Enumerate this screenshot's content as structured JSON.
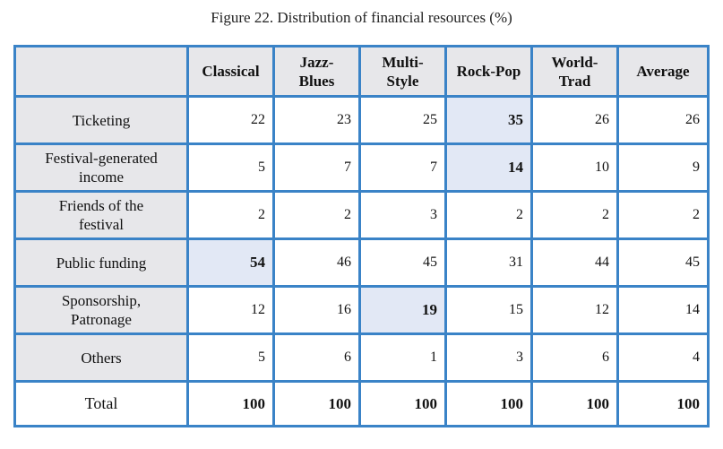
{
  "title": "Figure 22. Distribution of financial resources (%)",
  "chart_data": {
    "type": "table",
    "title": "Figure 22. Distribution of financial resources (%)",
    "columns": [
      "Classical",
      "Jazz-Blues",
      "Multi-Style",
      "Rock-Pop",
      "World-Trad",
      "Average"
    ],
    "columns_display": [
      [
        "Classical"
      ],
      [
        "Jazz-",
        "Blues"
      ],
      [
        "Multi-",
        "Style"
      ],
      [
        "Rock-Pop"
      ],
      [
        "World-",
        "Trad"
      ],
      [
        "Average"
      ]
    ],
    "rows": [
      {
        "label": "Ticketing",
        "label_lines": [
          "Ticketing"
        ],
        "values": [
          22,
          23,
          25,
          35,
          26,
          26
        ],
        "highlight": [
          3
        ]
      },
      {
        "label": "Festival-generated income",
        "label_lines": [
          "Festival-generated",
          "income"
        ],
        "values": [
          5,
          7,
          7,
          14,
          10,
          9
        ],
        "highlight": [
          3
        ]
      },
      {
        "label": "Friends of the festival",
        "label_lines": [
          "Friends of the",
          "festival"
        ],
        "values": [
          2,
          2,
          3,
          2,
          2,
          2
        ],
        "highlight": []
      },
      {
        "label": "Public funding",
        "label_lines": [
          "Public funding"
        ],
        "values": [
          54,
          46,
          45,
          31,
          44,
          45
        ],
        "highlight": [
          0
        ]
      },
      {
        "label": "Sponsorship, Patronage",
        "label_lines": [
          "Sponsorship,",
          "Patronage"
        ],
        "values": [
          12,
          16,
          19,
          15,
          12,
          14
        ],
        "highlight": [
          2
        ]
      },
      {
        "label": "Others",
        "label_lines": [
          "Others"
        ],
        "values": [
          5,
          6,
          1,
          3,
          6,
          4
        ],
        "highlight": []
      }
    ],
    "total": {
      "label": "Total",
      "values": [
        100,
        100,
        100,
        100,
        100,
        100
      ]
    },
    "colors": {
      "border": "#3a83c7",
      "header_bg": "#e7e7ea",
      "highlight_bg": "#e2e8f5",
      "total_rule": "#8a2a8a"
    }
  }
}
